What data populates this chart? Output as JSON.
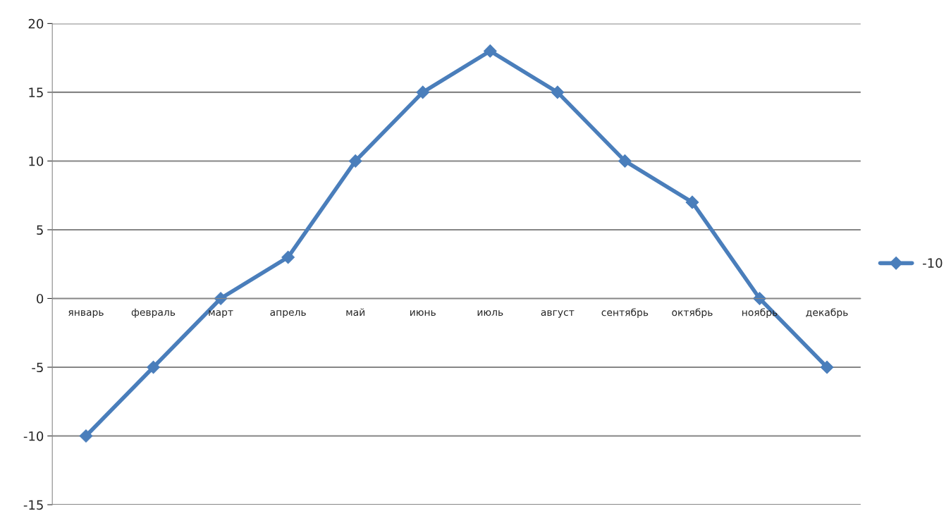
{
  "chart_data": {
    "type": "line",
    "categories": [
      "январь",
      "февраль",
      "март",
      "апрель",
      "май",
      "июнь",
      "июль",
      "август",
      "сентябрь",
      "октябрь",
      "ноябрь",
      "декабрь"
    ],
    "series": [
      {
        "name": "-10",
        "color": "#4a7ebb",
        "values": [
          -10,
          -5,
          0,
          3,
          10,
          15,
          18,
          15,
          10,
          7,
          0,
          -5
        ]
      }
    ],
    "ylim": [
      -15,
      20
    ],
    "yticks": [
      -15,
      -10,
      -5,
      0,
      5,
      10,
      15,
      20
    ],
    "grid": "y",
    "legend": "right",
    "marker": "diamond",
    "line_style": "solid"
  }
}
